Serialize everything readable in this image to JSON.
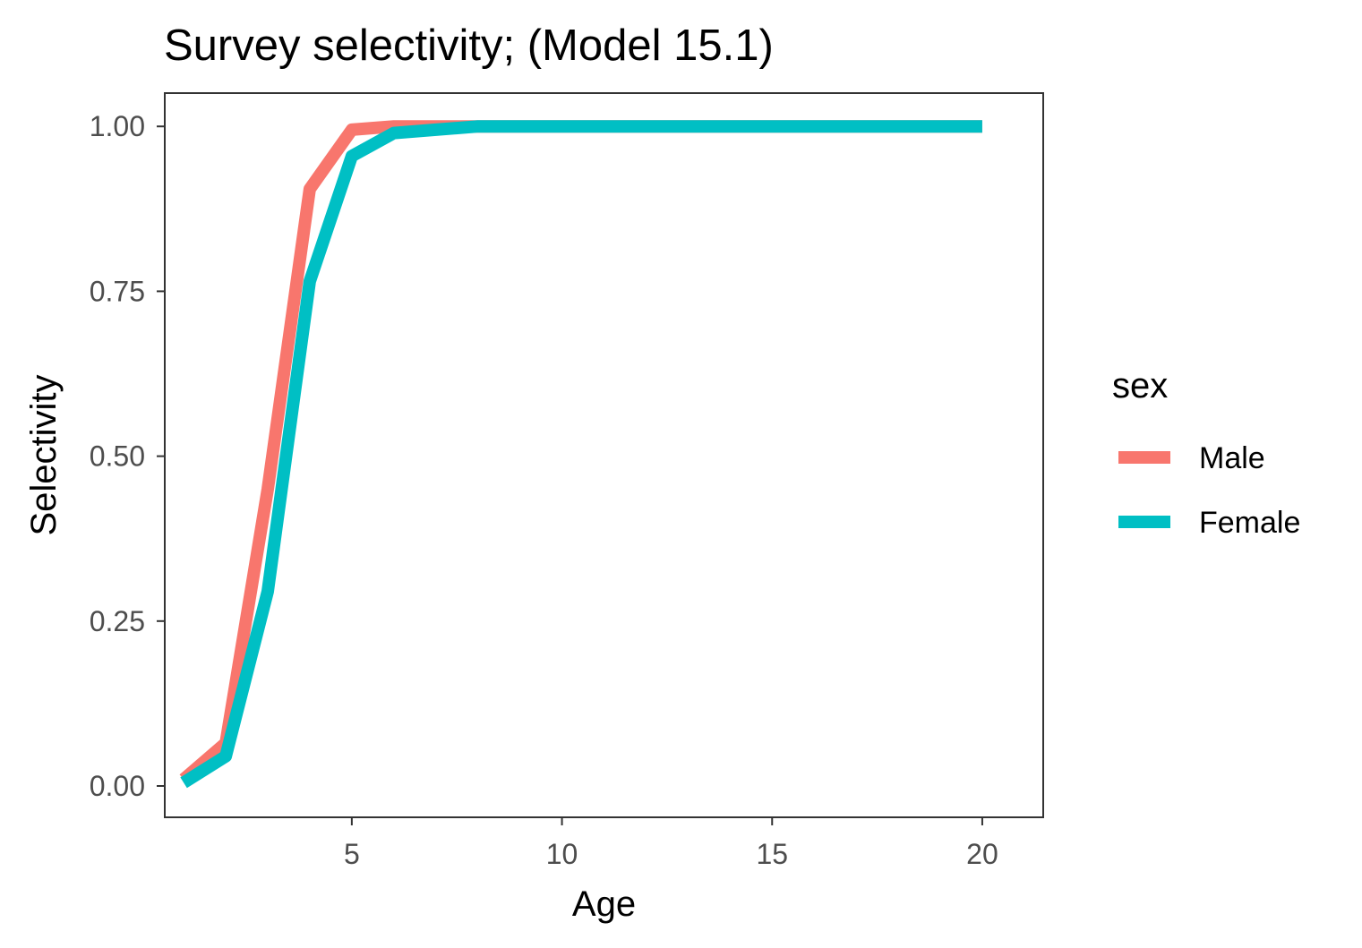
{
  "chart_data": {
    "type": "line",
    "title": "Survey selectivity; (Model 15.1)",
    "xlabel": "Age",
    "ylabel": "Selectivity",
    "xlim": [
      0.55,
      21.45
    ],
    "ylim": [
      -0.0475,
      1.0505
    ],
    "x_ticks": [
      5,
      10,
      15,
      20
    ],
    "x_tick_labels": [
      "5",
      "10",
      "15",
      "20"
    ],
    "y_ticks": [
      0,
      0.25,
      0.5,
      0.75,
      1
    ],
    "y_tick_labels": [
      "0.00",
      "0.25",
      "0.50",
      "0.75",
      "1.00"
    ],
    "grid": false,
    "legend": {
      "title": "sex",
      "placement": "right"
    },
    "x": [
      1,
      2,
      3,
      4,
      5,
      6,
      7,
      8,
      9,
      10,
      11,
      12,
      13,
      14,
      15,
      16,
      17,
      18,
      19,
      20
    ],
    "series": [
      {
        "name": "Male",
        "color": "#F8766D",
        "values": [
          0.01,
          0.065,
          0.45,
          0.905,
          0.995,
          1.0,
          1.0,
          1.0,
          1.0,
          1.0,
          1.0,
          1.0,
          1.0,
          1.0,
          1.0,
          1.0,
          1.0,
          1.0,
          1.0,
          1.0
        ]
      },
      {
        "name": "Female",
        "color": "#00BFC4",
        "values": [
          0.005,
          0.045,
          0.295,
          0.765,
          0.955,
          0.99,
          0.995,
          1.0,
          1.0,
          1.0,
          1.0,
          1.0,
          1.0,
          1.0,
          1.0,
          1.0,
          1.0,
          1.0,
          1.0,
          1.0
        ]
      }
    ]
  }
}
